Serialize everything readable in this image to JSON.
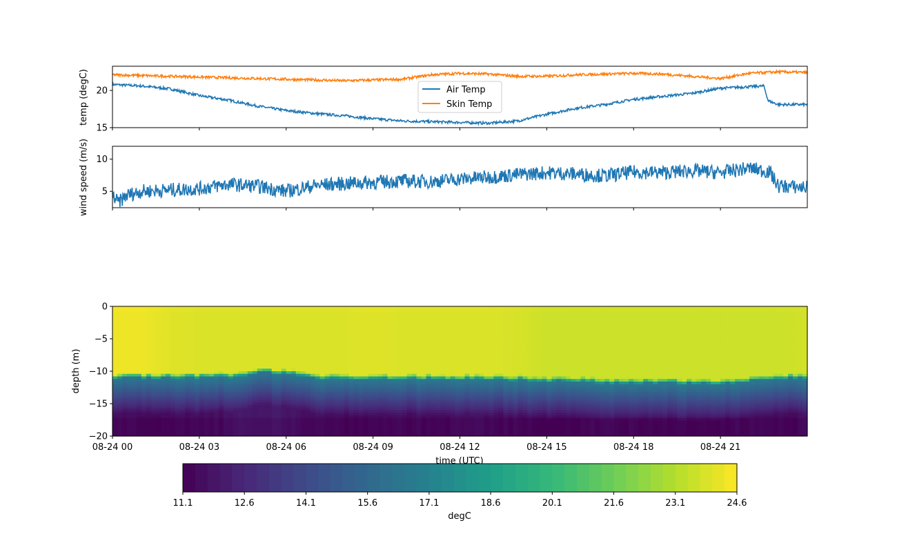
{
  "chart_data": [
    {
      "type": "line",
      "ylabel": "temp (degC)",
      "ylim": [
        15,
        23.25
      ],
      "yticks": [
        "15",
        "20"
      ],
      "xlim": [
        0,
        24
      ],
      "legend": {
        "placement": "center",
        "entries": [
          "Air Temp",
          "Skin Temp"
        ]
      },
      "series": [
        {
          "name": "Air Temp",
          "color": "#1f77b4",
          "x": [
            0,
            1,
            2,
            3,
            4,
            5,
            6,
            7,
            8,
            9,
            10,
            11,
            12,
            13,
            14,
            15,
            16,
            17,
            18,
            19,
            20,
            21,
            22,
            22.5,
            22.65,
            23,
            24
          ],
          "values": [
            20.8,
            20.6,
            20.2,
            19.3,
            18.7,
            17.9,
            17.3,
            16.9,
            16.6,
            16.2,
            15.9,
            15.8,
            15.7,
            15.6,
            15.9,
            16.8,
            17.6,
            18.1,
            18.8,
            19.2,
            19.6,
            20.3,
            20.5,
            20.6,
            18.6,
            18.1,
            18.1
          ]
        },
        {
          "name": "Skin Temp",
          "color": "#ff7f0e",
          "x": [
            0,
            1,
            2,
            3,
            4,
            5,
            6,
            7,
            8,
            9,
            10,
            11,
            12,
            13,
            14,
            15,
            16,
            17,
            18,
            19,
            20,
            21,
            22,
            23,
            24
          ],
          "values": [
            22.1,
            22.0,
            21.9,
            21.8,
            21.7,
            21.6,
            21.5,
            21.4,
            21.3,
            21.4,
            21.5,
            22.1,
            22.3,
            22.2,
            21.9,
            21.9,
            22.1,
            22.2,
            22.3,
            22.2,
            21.9,
            21.6,
            22.3,
            22.5,
            22.4
          ]
        }
      ]
    },
    {
      "type": "line",
      "ylabel": "wind speed (m/s)",
      "ylim": [
        2.45,
        12.0
      ],
      "yticks": [
        "5",
        "10"
      ],
      "xlim": [
        0,
        24
      ],
      "series": [
        {
          "name": "wind speed",
          "color": "#1f77b4",
          "x": [
            0,
            0.2,
            0.5,
            1,
            2,
            3,
            4,
            5,
            6,
            7,
            8,
            9,
            10,
            11,
            12,
            13,
            14,
            15,
            16,
            17,
            18,
            19,
            20,
            21,
            22,
            22.7,
            23,
            24
          ],
          "values": [
            4.4,
            3.2,
            4.4,
            5.0,
            5.2,
            5.4,
            6.1,
            5.8,
            5.0,
            5.9,
            6.2,
            6.4,
            6.6,
            6.5,
            6.9,
            7.2,
            7.6,
            7.9,
            7.7,
            7.4,
            8.0,
            7.9,
            8.2,
            7.9,
            8.6,
            8.0,
            5.8,
            5.6
          ]
        }
      ]
    },
    {
      "type": "heatmap",
      "ylabel": "depth (m)",
      "xlabel": "time (UTC)",
      "ylim": [
        -20,
        0
      ],
      "yticks": [
        "0",
        "−5",
        "−10",
        "−15",
        "−20"
      ],
      "xlim": [
        0,
        24
      ],
      "xticks": [
        "08-24 00",
        "08-24 03",
        "08-24 06",
        "08-24 09",
        "08-24 12",
        "08-24 15",
        "08-24 18",
        "08-24 21"
      ],
      "hours": [
        0,
        1,
        2,
        3,
        4,
        5,
        6,
        7,
        8,
        9,
        10,
        11,
        12,
        13,
        14,
        15,
        16,
        17,
        18,
        19,
        20,
        21,
        22,
        23,
        24
      ],
      "thermocline_depth_m": [
        -10.4,
        -10.4,
        -10.4,
        -10.4,
        -10.3,
        -9.6,
        -9.7,
        -10.5,
        -10.5,
        -10.6,
        -10.6,
        -10.6,
        -10.6,
        -10.6,
        -10.7,
        -10.9,
        -11.0,
        -11.1,
        -11.2,
        -11.2,
        -11.3,
        -11.2,
        -10.9,
        -10.5,
        -10.4
      ],
      "surface_temp_degC": [
        24.4,
        24.4,
        24.1,
        24.0,
        24.0,
        24.0,
        24.0,
        24.0,
        24.0,
        24.1,
        24.0,
        24.0,
        24.0,
        24.0,
        23.9,
        23.7,
        23.7,
        23.7,
        23.7,
        23.7,
        23.7,
        23.7,
        23.7,
        23.7,
        23.8
      ],
      "bottom_temp_degC": [
        11.6,
        11.6,
        11.5,
        11.5,
        11.7,
        12.1,
        12.0,
        11.6,
        11.5,
        11.5,
        11.6,
        11.5,
        11.6,
        11.6,
        11.5,
        11.4,
        11.5,
        11.5,
        11.5,
        11.4,
        11.4,
        11.5,
        11.6,
        11.6,
        11.6
      ]
    },
    {
      "type": "colorbar",
      "label": "degC",
      "range": [
        11.1,
        24.6
      ],
      "ticks": [
        "11.1",
        "12.6",
        "14.1",
        "15.6",
        "17.1",
        "18.6",
        "20.1",
        "21.6",
        "23.1",
        "24.6"
      ],
      "levels": 45,
      "colormap": "viridis"
    }
  ]
}
